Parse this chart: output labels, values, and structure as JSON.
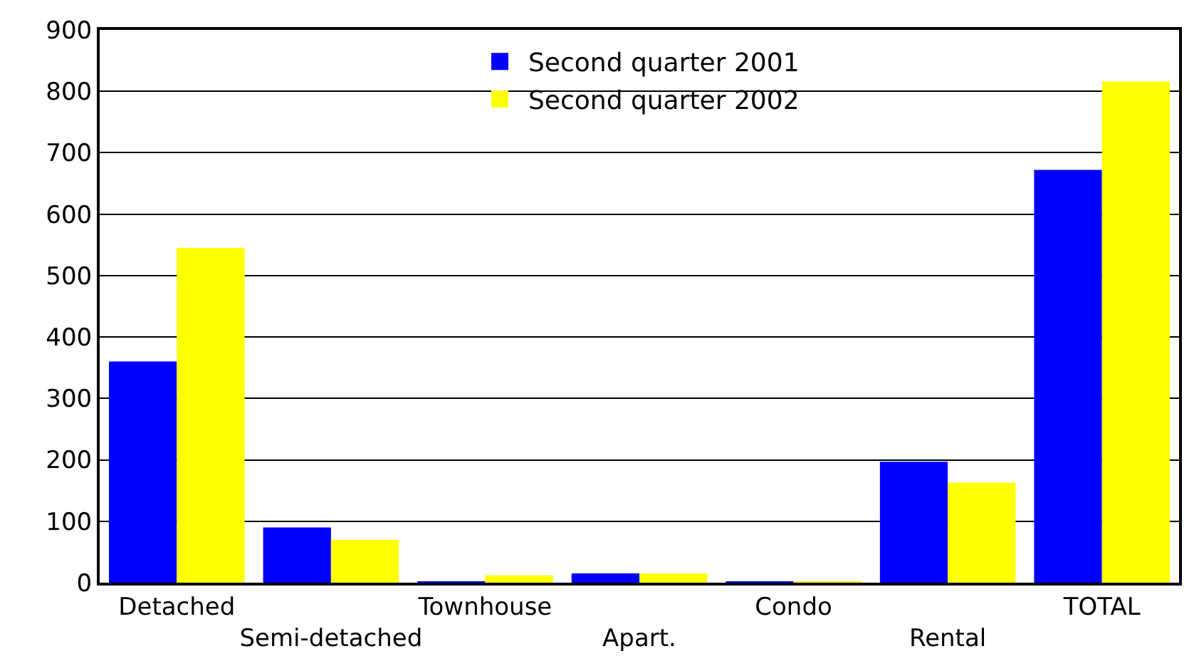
{
  "chart_data": {
    "type": "bar",
    "categories": [
      "Detached",
      "Semi-detached",
      "Townhouse",
      "Apart.",
      "Condo",
      "Rental",
      "TOTAL"
    ],
    "series": [
      {
        "name": "Second quarter 2001",
        "color": "#0000ff",
        "values": [
          360,
          90,
          2,
          15,
          2,
          197,
          672
        ]
      },
      {
        "name": "Second quarter 2002",
        "color": "#ffff00",
        "values": [
          545,
          70,
          12,
          15,
          2,
          163,
          816
        ]
      }
    ],
    "ylim": [
      0,
      900
    ],
    "yticks": [
      0,
      100,
      200,
      300,
      400,
      500,
      600,
      700,
      800,
      900
    ],
    "grid": "y",
    "legend": "top"
  }
}
